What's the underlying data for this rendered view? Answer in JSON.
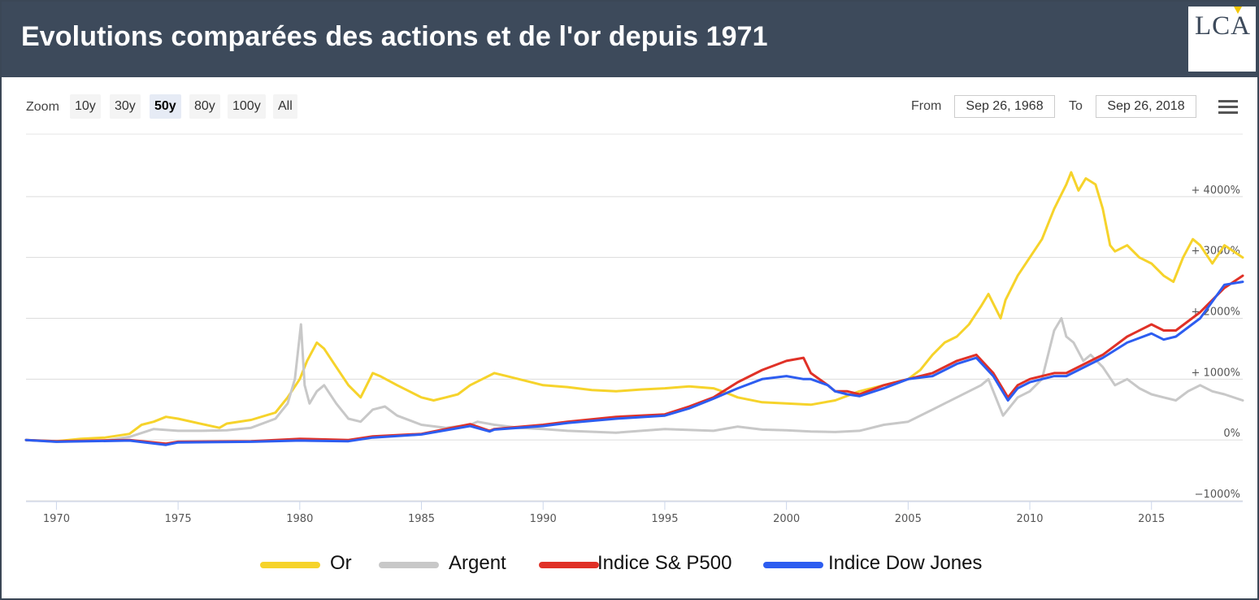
{
  "header": {
    "title": "Evolutions comparées des actions et de l'or depuis 1971",
    "logo": "LCA"
  },
  "toolbar": {
    "zoom_label": "Zoom",
    "zoom_buttons": [
      "10y",
      "30y",
      "50y",
      "80y",
      "100y",
      "All"
    ],
    "zoom_active": "50y",
    "from_label": "From",
    "from_value": "Sep 26, 1968",
    "to_label": "To",
    "to_value": "Sep 26, 2018",
    "menu_icon": "hamburger-menu-icon"
  },
  "chart_data": {
    "type": "line",
    "title": "Evolutions comparées des actions et de l'or depuis 1971",
    "xlabel": "",
    "ylabel": "",
    "xlim": [
      1968.75,
      2018.75
    ],
    "ylim": [
      -1000,
      5000
    ],
    "x_ticks": [
      "1970",
      "1975",
      "1980",
      "1985",
      "1990",
      "1995",
      "2000",
      "2005",
      "2010",
      "2015"
    ],
    "y_ticks": [
      {
        "value": 4000,
        "label": "+ 4000%"
      },
      {
        "value": 3000,
        "label": "+ 3000%"
      },
      {
        "value": 2000,
        "label": "+ 2000%"
      },
      {
        "value": 1000,
        "label": "+ 1000%"
      },
      {
        "value": 0,
        "label": "0%"
      },
      {
        "value": -1000,
        "label": "−1000%"
      }
    ],
    "grid": true,
    "legend_position": "bottom",
    "series": [
      {
        "name": "Or",
        "color": "#f6d32b",
        "x": [
          1968.75,
          1970,
          1971,
          1972,
          1973,
          1973.5,
          1974,
          1974.5,
          1975,
          1976,
          1976.7,
          1977,
          1978,
          1979,
          1979.5,
          1980.0,
          1980.3,
          1980.7,
          1981.0,
          1981.5,
          1982.0,
          1982.5,
          1983.0,
          1983.3,
          1984.0,
          1984.5,
          1985.0,
          1985.5,
          1986.0,
          1986.5,
          1987.0,
          1987.5,
          1988.0,
          1988.5,
          1989.0,
          1989.5,
          1990.0,
          1991.0,
          1992.0,
          1993.0,
          1994.0,
          1995.0,
          1996.0,
          1997.0,
          1997.5,
          1998.0,
          1999.0,
          2000.0,
          2001.0,
          2002.0,
          2003.0,
          2004.0,
          2005.0,
          2005.5,
          2006.0,
          2006.5,
          2007.0,
          2007.5,
          2008.0,
          2008.3,
          2008.8,
          2009.0,
          2009.5,
          2010.0,
          2010.5,
          2011.0,
          2011.5,
          2011.7,
          2012.0,
          2012.3,
          2012.7,
          2013.0,
          2013.3,
          2013.5,
          2014.0,
          2014.5,
          2015.0,
          2015.5,
          2015.9,
          2016.3,
          2016.7,
          2017.0,
          2017.5,
          2018.0,
          2018.75
        ],
        "y": [
          0,
          -20,
          20,
          40,
          100,
          250,
          300,
          380,
          350,
          260,
          200,
          270,
          330,
          450,
          700,
          1000,
          1300,
          1600,
          1500,
          1200,
          900,
          700,
          1100,
          1050,
          900,
          800,
          700,
          650,
          700,
          750,
          900,
          1000,
          1100,
          1050,
          1000,
          950,
          900,
          870,
          820,
          800,
          830,
          850,
          880,
          850,
          780,
          700,
          620,
          600,
          580,
          650,
          800,
          900,
          1000,
          1150,
          1400,
          1600,
          1700,
          1900,
          2200,
          2400,
          2000,
          2300,
          2700,
          3000,
          3300,
          3800,
          4200,
          4400,
          4100,
          4300,
          4200,
          3800,
          3200,
          3100,
          3200,
          3000,
          2900,
          2700,
          2600,
          3000,
          3300,
          3200,
          2900,
          3200,
          3000
        ]
      },
      {
        "name": "Argent",
        "color": "#c8c8c8",
        "x": [
          1968.75,
          1970,
          1972,
          1973,
          1974,
          1975,
          1976,
          1977,
          1978,
          1979,
          1979.5,
          1979.8,
          1980.05,
          1980.2,
          1980.4,
          1980.7,
          1981,
          1981.5,
          1982,
          1982.5,
          1983,
          1983.5,
          1984,
          1985,
          1986,
          1987,
          1987.3,
          1988,
          1989,
          1990,
          1991,
          1993,
          1995,
          1997,
          1998,
          1999,
          2000,
          2001,
          2002,
          2003,
          2004,
          2005,
          2006,
          2006.5,
          2007,
          2008,
          2008.3,
          2008.9,
          2009.5,
          2010,
          2010.5,
          2011,
          2011.3,
          2011.5,
          2011.8,
          2012.2,
          2012.5,
          2013,
          2013.5,
          2014,
          2014.5,
          2015,
          2015.5,
          2016,
          2016.5,
          2017,
          2017.5,
          2018,
          2018.75
        ],
        "y": [
          0,
          -30,
          -10,
          50,
          180,
          150,
          150,
          160,
          200,
          350,
          600,
          1000,
          1900,
          900,
          600,
          800,
          900,
          600,
          350,
          300,
          500,
          550,
          400,
          250,
          200,
          250,
          300,
          250,
          200,
          180,
          150,
          120,
          180,
          150,
          220,
          170,
          160,
          140,
          130,
          150,
          250,
          300,
          500,
          600,
          700,
          900,
          1000,
          400,
          700,
          800,
          1000,
          1800,
          2000,
          1700,
          1600,
          1300,
          1400,
          1200,
          900,
          1000,
          850,
          750,
          700,
          650,
          800,
          900,
          800,
          750,
          650
        ]
      },
      {
        "name": "Indice S& P500",
        "color": "#e03127",
        "x": [
          1968.75,
          1970,
          1973,
          1974.5,
          1975,
          1978,
          1980,
          1982,
          1983,
          1985,
          1987,
          1987.8,
          1988,
          1990,
          1991,
          1993,
          1995,
          1996,
          1997,
          1998,
          1999,
          2000,
          2000.7,
          2001,
          2001.7,
          2002,
          2002.5,
          2003,
          2004,
          2005,
          2006,
          2007,
          2007.8,
          2008.5,
          2009.1,
          2009.5,
          2010,
          2011,
          2011.5,
          2012,
          2013,
          2014,
          2015,
          2015.5,
          2016,
          2017,
          2018,
          2018.75
        ],
        "y": [
          0,
          -20,
          0,
          -60,
          -30,
          -20,
          20,
          0,
          60,
          100,
          260,
          150,
          180,
          250,
          300,
          380,
          420,
          550,
          700,
          950,
          1150,
          1300,
          1350,
          1100,
          900,
          800,
          800,
          750,
          900,
          1000,
          1100,
          1300,
          1400,
          1100,
          700,
          900,
          1000,
          1100,
          1100,
          1200,
          1400,
          1700,
          1900,
          1800,
          1800,
          2100,
          2500,
          2700
        ]
      },
      {
        "name": "Indice Dow Jones",
        "color": "#2d5df0",
        "x": [
          1968.75,
          1970,
          1973,
          1974.5,
          1975,
          1978,
          1980,
          1982,
          1983,
          1985,
          1987,
          1987.8,
          1988,
          1990,
          1991,
          1993,
          1995,
          1996,
          1997,
          1998,
          1999,
          2000,
          2000.7,
          2001,
          2001.7,
          2002,
          2002.5,
          2003,
          2004,
          2005,
          2006,
          2007,
          2007.8,
          2008.5,
          2009.1,
          2009.5,
          2010,
          2011,
          2011.5,
          2012,
          2013,
          2014,
          2015,
          2015.5,
          2016,
          2017,
          2018,
          2018.75
        ],
        "y": [
          0,
          -30,
          -10,
          -80,
          -40,
          -30,
          -10,
          -20,
          40,
          90,
          230,
          140,
          170,
          230,
          280,
          350,
          400,
          520,
          680,
          850,
          1000,
          1050,
          1000,
          1000,
          900,
          800,
          750,
          720,
          850,
          1000,
          1050,
          1250,
          1350,
          1050,
          650,
          850,
          950,
          1050,
          1050,
          1150,
          1350,
          1600,
          1750,
          1650,
          1700,
          2000,
          2550,
          2600
        ]
      }
    ]
  }
}
